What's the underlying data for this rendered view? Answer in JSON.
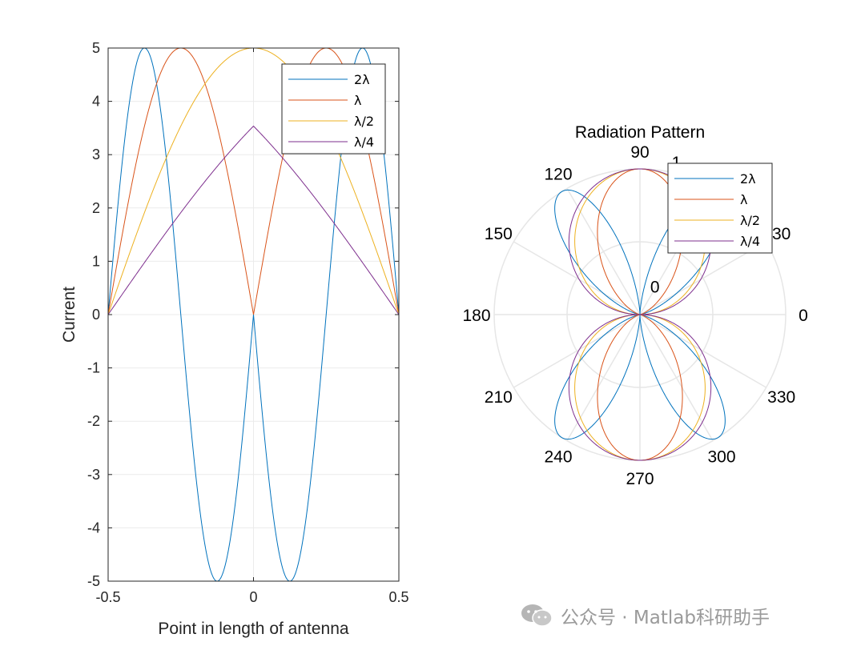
{
  "chart_data": [
    {
      "type": "line",
      "title": "",
      "xlabel": "Point in length of antenna",
      "ylabel": "Current",
      "xlim": [
        -0.5,
        0.5
      ],
      "ylim": [
        -5,
        5
      ],
      "xticks": [
        "-0.5",
        "0",
        "0.5"
      ],
      "yticks": [
        "-5",
        "-4",
        "-3",
        "-2",
        "-1",
        "0",
        "1",
        "2",
        "3",
        "4",
        "5"
      ],
      "grid": true,
      "legend_position": "top-right",
      "series": [
        {
          "name": "2λ",
          "color": "#0072BD",
          "amplitude": 5,
          "length": 2,
          "x": [
            -0.5,
            -0.375,
            -0.25,
            -0.125,
            0,
            0.125,
            0.25,
            0.375,
            0.5
          ],
          "y": [
            0,
            5,
            0,
            -5,
            0,
            -5,
            0,
            5,
            0
          ]
        },
        {
          "name": "λ",
          "color": "#D95319",
          "amplitude": 5,
          "length": 1,
          "x": [
            -0.5,
            -0.25,
            0,
            0.25,
            0.5
          ],
          "y": [
            0,
            5,
            0,
            5,
            0
          ]
        },
        {
          "name": "λ/2",
          "color": "#EDB120",
          "amplitude": 5,
          "length": 0.5,
          "x": [
            -0.5,
            -0.25,
            0,
            0.25,
            0.5
          ],
          "y": [
            0,
            3.54,
            5,
            3.54,
            0
          ]
        },
        {
          "name": "λ/4",
          "color": "#7E2F8E",
          "amplitude": 5,
          "length": 0.25,
          "x": [
            -0.5,
            -0.25,
            0,
            0.25,
            0.5
          ],
          "y": [
            0,
            1.77,
            3.54,
            1.77,
            0
          ]
        }
      ]
    },
    {
      "type": "polar",
      "title": "Radiation Pattern",
      "theta_ticks": [
        "0",
        "30",
        "60",
        "90",
        "120",
        "150",
        "180",
        "210",
        "240",
        "270",
        "300",
        "330"
      ],
      "r_ticks": [
        "0",
        "1"
      ],
      "rlim": [
        0,
        1
      ],
      "grid": true,
      "legend_position": "top-right",
      "series": [
        {
          "name": "2λ",
          "color": "#0072BD",
          "length": 2
        },
        {
          "name": "λ",
          "color": "#D95319",
          "length": 1
        },
        {
          "name": "λ/2",
          "color": "#EDB120",
          "length": 0.5
        },
        {
          "name": "λ/4",
          "color": "#7E2F8E",
          "length": 0.25
        }
      ]
    }
  ],
  "watermark": {
    "text": "公众号 · Matlab科研助手",
    "icon": "wechat-icon"
  }
}
